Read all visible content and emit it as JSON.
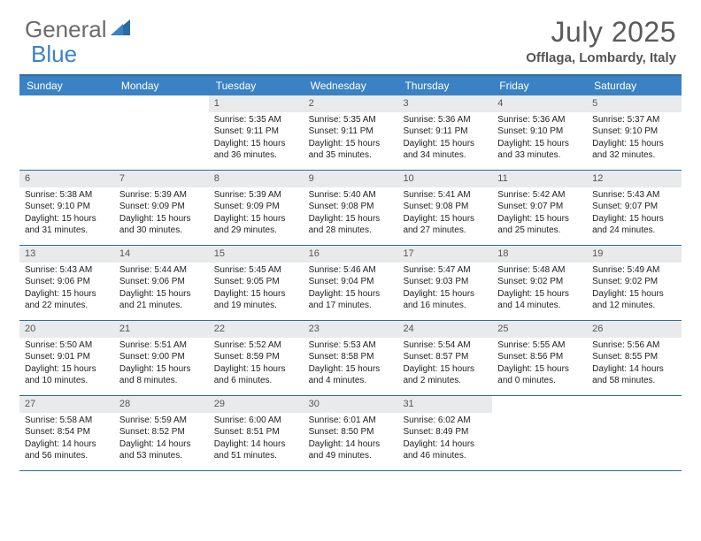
{
  "brand": {
    "part1": "General",
    "part2": "Blue"
  },
  "title": "July 2025",
  "location": "Offlaga, Lombardy, Italy",
  "colors": {
    "header_bg": "#3b82c4",
    "header_text": "#ffffff",
    "rule": "#2b6ca3",
    "daynum_bg": "#e9eaeb",
    "daynum_text": "#555555",
    "body_text": "#222222",
    "logo_gray": "#6b6b6b",
    "logo_blue": "#3b82c4",
    "title_text": "#5a5a5a"
  },
  "typography": {
    "title_fontsize": 32,
    "location_fontsize": 15,
    "dayhead_fontsize": 12,
    "daynum_fontsize": 11,
    "cell_fontsize": 10
  },
  "day_headers": [
    "Sunday",
    "Monday",
    "Tuesday",
    "Wednesday",
    "Thursday",
    "Friday",
    "Saturday"
  ],
  "weeks": [
    [
      null,
      null,
      {
        "n": "1",
        "sunrise": "5:35 AM",
        "sunset": "9:11 PM",
        "dl_h": "15",
        "dl_m": "36"
      },
      {
        "n": "2",
        "sunrise": "5:35 AM",
        "sunset": "9:11 PM",
        "dl_h": "15",
        "dl_m": "35"
      },
      {
        "n": "3",
        "sunrise": "5:36 AM",
        "sunset": "9:11 PM",
        "dl_h": "15",
        "dl_m": "34"
      },
      {
        "n": "4",
        "sunrise": "5:36 AM",
        "sunset": "9:10 PM",
        "dl_h": "15",
        "dl_m": "33"
      },
      {
        "n": "5",
        "sunrise": "5:37 AM",
        "sunset": "9:10 PM",
        "dl_h": "15",
        "dl_m": "32"
      }
    ],
    [
      {
        "n": "6",
        "sunrise": "5:38 AM",
        "sunset": "9:10 PM",
        "dl_h": "15",
        "dl_m": "31"
      },
      {
        "n": "7",
        "sunrise": "5:39 AM",
        "sunset": "9:09 PM",
        "dl_h": "15",
        "dl_m": "30"
      },
      {
        "n": "8",
        "sunrise": "5:39 AM",
        "sunset": "9:09 PM",
        "dl_h": "15",
        "dl_m": "29"
      },
      {
        "n": "9",
        "sunrise": "5:40 AM",
        "sunset": "9:08 PM",
        "dl_h": "15",
        "dl_m": "28"
      },
      {
        "n": "10",
        "sunrise": "5:41 AM",
        "sunset": "9:08 PM",
        "dl_h": "15",
        "dl_m": "27"
      },
      {
        "n": "11",
        "sunrise": "5:42 AM",
        "sunset": "9:07 PM",
        "dl_h": "15",
        "dl_m": "25"
      },
      {
        "n": "12",
        "sunrise": "5:43 AM",
        "sunset": "9:07 PM",
        "dl_h": "15",
        "dl_m": "24"
      }
    ],
    [
      {
        "n": "13",
        "sunrise": "5:43 AM",
        "sunset": "9:06 PM",
        "dl_h": "15",
        "dl_m": "22"
      },
      {
        "n": "14",
        "sunrise": "5:44 AM",
        "sunset": "9:06 PM",
        "dl_h": "15",
        "dl_m": "21"
      },
      {
        "n": "15",
        "sunrise": "5:45 AM",
        "sunset": "9:05 PM",
        "dl_h": "15",
        "dl_m": "19"
      },
      {
        "n": "16",
        "sunrise": "5:46 AM",
        "sunset": "9:04 PM",
        "dl_h": "15",
        "dl_m": "17"
      },
      {
        "n": "17",
        "sunrise": "5:47 AM",
        "sunset": "9:03 PM",
        "dl_h": "15",
        "dl_m": "16"
      },
      {
        "n": "18",
        "sunrise": "5:48 AM",
        "sunset": "9:02 PM",
        "dl_h": "15",
        "dl_m": "14"
      },
      {
        "n": "19",
        "sunrise": "5:49 AM",
        "sunset": "9:02 PM",
        "dl_h": "15",
        "dl_m": "12"
      }
    ],
    [
      {
        "n": "20",
        "sunrise": "5:50 AM",
        "sunset": "9:01 PM",
        "dl_h": "15",
        "dl_m": "10"
      },
      {
        "n": "21",
        "sunrise": "5:51 AM",
        "sunset": "9:00 PM",
        "dl_h": "15",
        "dl_m": "8"
      },
      {
        "n": "22",
        "sunrise": "5:52 AM",
        "sunset": "8:59 PM",
        "dl_h": "15",
        "dl_m": "6"
      },
      {
        "n": "23",
        "sunrise": "5:53 AM",
        "sunset": "8:58 PM",
        "dl_h": "15",
        "dl_m": "4"
      },
      {
        "n": "24",
        "sunrise": "5:54 AM",
        "sunset": "8:57 PM",
        "dl_h": "15",
        "dl_m": "2"
      },
      {
        "n": "25",
        "sunrise": "5:55 AM",
        "sunset": "8:56 PM",
        "dl_h": "15",
        "dl_m": "0"
      },
      {
        "n": "26",
        "sunrise": "5:56 AM",
        "sunset": "8:55 PM",
        "dl_h": "14",
        "dl_m": "58"
      }
    ],
    [
      {
        "n": "27",
        "sunrise": "5:58 AM",
        "sunset": "8:54 PM",
        "dl_h": "14",
        "dl_m": "56"
      },
      {
        "n": "28",
        "sunrise": "5:59 AM",
        "sunset": "8:52 PM",
        "dl_h": "14",
        "dl_m": "53"
      },
      {
        "n": "29",
        "sunrise": "6:00 AM",
        "sunset": "8:51 PM",
        "dl_h": "14",
        "dl_m": "51"
      },
      {
        "n": "30",
        "sunrise": "6:01 AM",
        "sunset": "8:50 PM",
        "dl_h": "14",
        "dl_m": "49"
      },
      {
        "n": "31",
        "sunrise": "6:02 AM",
        "sunset": "8:49 PM",
        "dl_h": "14",
        "dl_m": "46"
      },
      null,
      null
    ]
  ],
  "labels": {
    "sunrise": "Sunrise:",
    "sunset": "Sunset:",
    "daylight": "Daylight:",
    "hours": "hours",
    "and": "and",
    "minutes": "minutes."
  }
}
